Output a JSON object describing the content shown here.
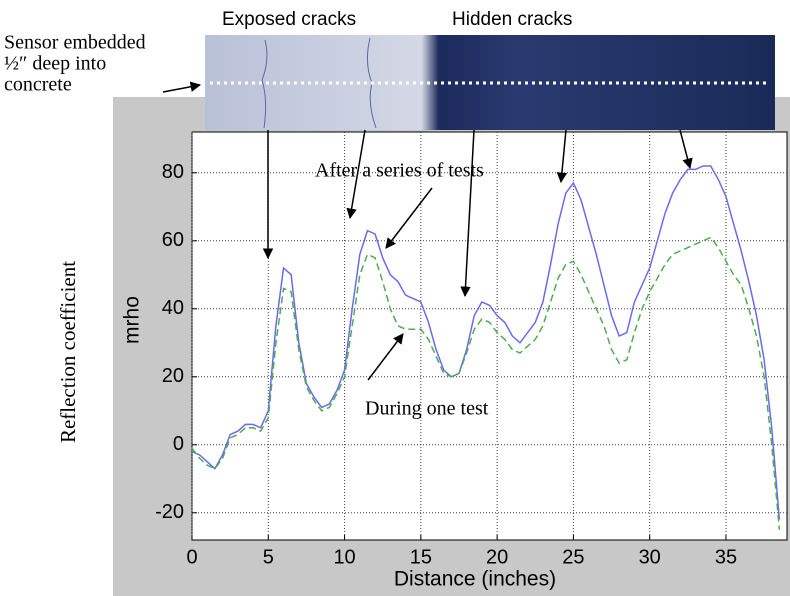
{
  "chart_data": {
    "type": "line",
    "xlabel": "Distance (inches)",
    "ylabel": "mrho",
    "outer_ylabel": "Reflection coefficient",
    "photo_labels": [
      "Exposed cracks",
      "Hidden cracks"
    ],
    "sensor_label": [
      "Sensor embedded",
      "½″ deep into",
      "concrete"
    ],
    "x": [
      0,
      0.5,
      1,
      1.5,
      2,
      2.5,
      3,
      3.5,
      4,
      4.5,
      5,
      5.5,
      6,
      6.5,
      7,
      7.5,
      8,
      8.5,
      9,
      9.5,
      10,
      10.5,
      11,
      11.5,
      12,
      12.5,
      13,
      13.5,
      14,
      14.5,
      15,
      15.5,
      16,
      16.5,
      17,
      17.5,
      18,
      18.5,
      19,
      19.5,
      20,
      20.5,
      21,
      21.5,
      22,
      22.5,
      23,
      23.5,
      24,
      24.5,
      25,
      25.5,
      26,
      26.5,
      27,
      27.5,
      28,
      28.5,
      29,
      29.5,
      30,
      30.5,
      31,
      31.5,
      32,
      32.5,
      33,
      33.5,
      34,
      34.5,
      35,
      35.5,
      36,
      36.5,
      37,
      37.5,
      38,
      38.5
    ],
    "series": [
      {
        "name": "After a series of tests",
        "color": "#6a6af0",
        "dash": false,
        "values": [
          -2,
          -3,
          -5,
          -7,
          -3,
          3,
          4,
          6,
          6,
          5,
          10,
          35,
          52,
          50,
          30,
          18,
          14,
          11,
          12,
          16,
          22,
          40,
          56,
          63,
          62,
          55,
          50,
          48,
          44,
          43,
          42,
          36,
          28,
          22,
          20,
          21,
          28,
          38,
          42,
          41,
          38,
          36,
          32,
          30,
          33,
          36,
          42,
          53,
          65,
          74,
          77,
          72,
          64,
          56,
          47,
          38,
          32,
          33,
          42,
          47,
          52,
          60,
          68,
          74,
          78,
          81,
          81,
          82,
          82,
          78,
          73,
          65,
          57,
          48,
          38,
          25,
          5,
          -22
        ]
      },
      {
        "name": "During one test",
        "color": "#4caf4c",
        "dash": true,
        "values": [
          -1,
          -4,
          -6,
          -7,
          -4,
          2,
          3,
          5,
          5,
          4,
          8,
          30,
          46,
          45,
          28,
          17,
          13,
          10,
          11,
          15,
          20,
          35,
          50,
          56,
          55,
          48,
          40,
          35,
          34,
          34,
          34,
          31,
          26,
          21,
          20,
          21,
          27,
          34,
          37,
          36,
          33,
          31,
          28,
          27,
          29,
          31,
          35,
          42,
          49,
          53,
          54,
          50,
          45,
          40,
          35,
          28,
          24,
          25,
          33,
          40,
          45,
          49,
          53,
          56,
          57,
          58,
          59,
          60,
          61,
          58,
          54,
          50,
          47,
          40,
          32,
          20,
          0,
          -25
        ]
      }
    ],
    "xlim": [
      0,
      39
    ],
    "ylim": [
      -28,
      92
    ],
    "xticks": [
      0,
      5,
      10,
      15,
      20,
      25,
      30,
      35
    ],
    "yticks": [
      -20,
      0,
      20,
      40,
      60,
      80
    ],
    "grid": true
  }
}
